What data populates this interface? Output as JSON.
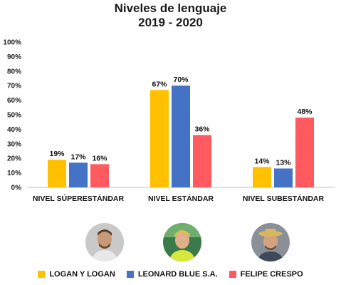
{
  "chart_data": {
    "type": "bar",
    "title": [
      "Niveles de lenguaje",
      "2019 - 2020"
    ],
    "categories": [
      "NIVEL SÚPERESTÁNDAR",
      "NIVEL ESTÁNDAR",
      "NIVEL SUBESTÁNDAR"
    ],
    "series": [
      {
        "name": "LOGAN Y LOGAN",
        "color": "#FFC000",
        "values": [
          19,
          67,
          14
        ],
        "labels": [
          "19%",
          "67%",
          "14%"
        ]
      },
      {
        "name": "LEONARD BLUE S.A.",
        "color": "#4472C4",
        "values": [
          17,
          70,
          13
        ],
        "labels": [
          "17%",
          "70%",
          "13%"
        ]
      },
      {
        "name": "FELIPE CRESPO",
        "color": "#FF5A5F",
        "values": [
          16,
          36,
          48
        ],
        "labels": [
          "16%",
          "36%",
          "48%"
        ]
      }
    ],
    "ylim": [
      0,
      100
    ],
    "yticks": [
      {
        "value": 0,
        "label": "0%"
      },
      {
        "value": 10,
        "label": "10%"
      },
      {
        "value": 20,
        "label": "20%"
      },
      {
        "value": 30,
        "label": "30%"
      },
      {
        "value": 40,
        "label": "40%"
      },
      {
        "value": 50,
        "label": "50%"
      },
      {
        "value": 60,
        "label": "60%"
      },
      {
        "value": 70,
        "label": "70%"
      },
      {
        "value": 80,
        "label": "80%"
      },
      {
        "value": 90,
        "label": "90%"
      },
      {
        "value": 100,
        "label": "100%"
      }
    ],
    "grid": false,
    "legend": "bottom"
  },
  "avatars": [
    {
      "series": "LOGAN Y LOGAN"
    },
    {
      "series": "LEONARD BLUE S.A."
    },
    {
      "series": "FELIPE CRESPO"
    }
  ]
}
